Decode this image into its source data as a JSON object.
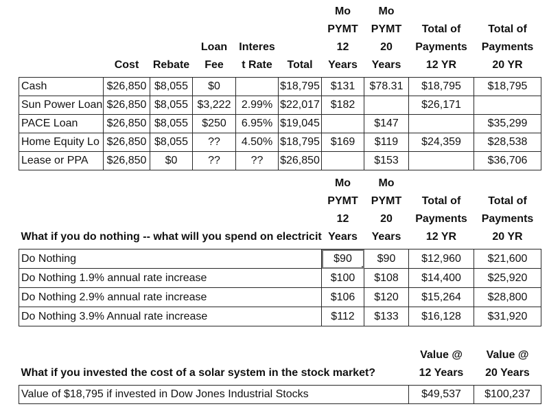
{
  "colors": {
    "background": "#ffffff",
    "text": "#111111",
    "grid": "#262626",
    "active_cell": "#737373"
  },
  "financing_table": {
    "corner_header": "",
    "column_headers": [
      "Cost",
      "Rebate",
      "Loan\nFee",
      "Interes\nt Rate",
      "Total",
      "Mo\nPYMT\n12\nYears",
      "Mo\nPYMT\n20\nYears",
      "Total of\nPayments\n12 YR",
      "Total of\nPayments\n20 YR"
    ],
    "rows": [
      {
        "label": "Cash",
        "cells": [
          "$26,850",
          "$8,055",
          "$0",
          "",
          "$18,795",
          "$131",
          "$78.31",
          "$18,795",
          "$18,795"
        ]
      },
      {
        "label": "Sun Power Loan",
        "cells": [
          "$26,850",
          "$8,055",
          "$3,222",
          "2.99%",
          "$22,017",
          "$182",
          "",
          "$26,171",
          ""
        ]
      },
      {
        "label": "PACE Loan",
        "cells": [
          "$26,850",
          "$8,055",
          "$250",
          "6.95%",
          "$19,045",
          "",
          "$147",
          "",
          "$35,299"
        ]
      },
      {
        "label": "Home Equity Lo",
        "cells": [
          "$26,850",
          "$8,055",
          "??",
          "4.50%",
          "$18,795",
          "$169",
          "$119",
          "$24,359",
          "$28,538"
        ]
      },
      {
        "label": "Lease or PPA",
        "cells": [
          "$26,850",
          "$0",
          "??",
          "??",
          "$26,850",
          "",
          "$153",
          "",
          "$36,706"
        ]
      }
    ]
  },
  "do_nothing_table": {
    "title": "What if you do nothing -- what will you spend on electricit",
    "column_headers": [
      "Mo\nPYMT\n12\nYears",
      "Mo\nPYMT\n20\nYears",
      "Total of\nPayments\n12 YR",
      "Total of\nPayments\n20 YR"
    ],
    "rows": [
      {
        "label": "Do Nothing",
        "cells": [
          "$90",
          "$90",
          "$12,960",
          "$21,600"
        ],
        "active_cell_index": 0
      },
      {
        "label": "Do Nothing 1.9% annual rate increase",
        "cells": [
          "$100",
          "$108",
          "$14,400",
          "$25,920"
        ]
      },
      {
        "label": "Do Nothing 2.9% annual rate increase",
        "cells": [
          "$106",
          "$120",
          "$15,264",
          "$28,800"
        ]
      },
      {
        "label": "Do Nothing 3.9% Annual rate increase",
        "cells": [
          "$112",
          "$133",
          "$16,128",
          "$31,920"
        ]
      }
    ]
  },
  "investment_table": {
    "title": "What if you invested the cost of a solar system in the stock market?",
    "column_headers": [
      "Value @\n12 Years",
      "Value @\n20 Years"
    ],
    "rows": [
      {
        "label": "Value of $18,795 if invested in Dow Jones Industrial Stocks",
        "cells": [
          "$49,537",
          "$100,237"
        ]
      }
    ]
  }
}
